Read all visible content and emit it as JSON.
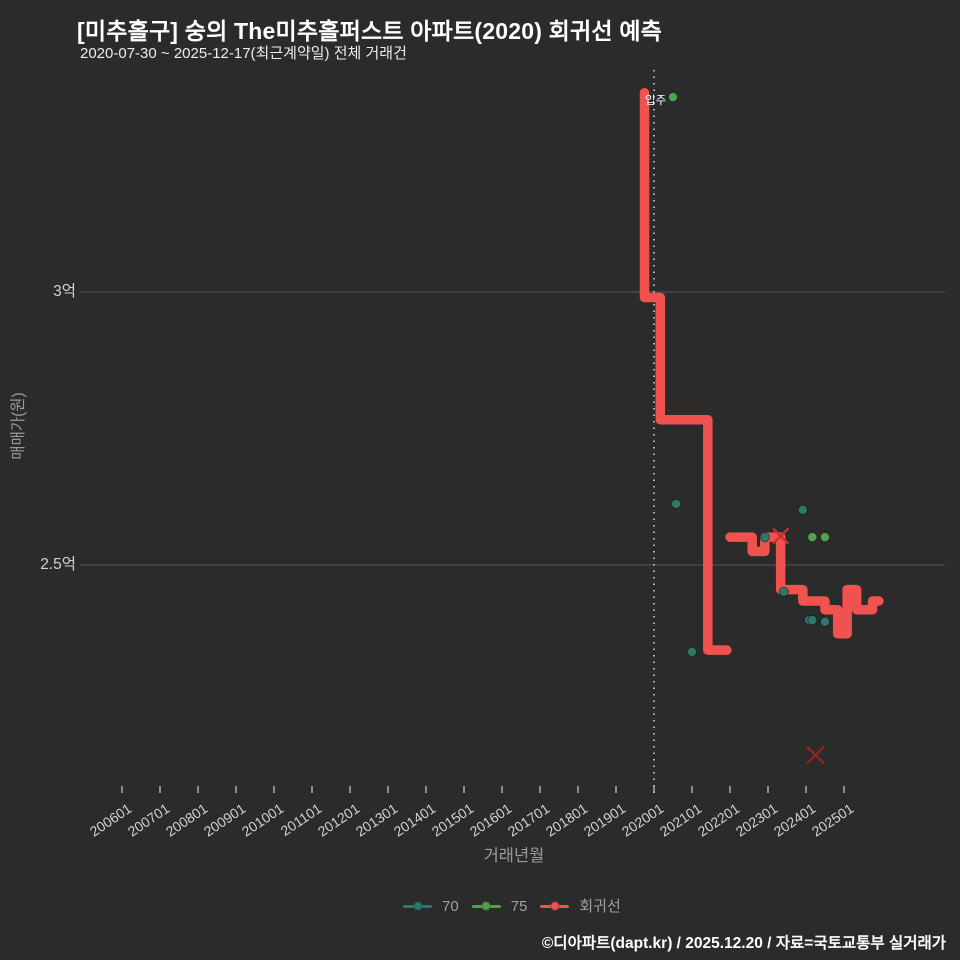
{
  "header": {
    "title": "[미추홀구] 숭의 The미추홀퍼스트 아파트(2020) 회귀선 예측",
    "subtitle": "2020-07-30 ~ 2025-12-17(최근계약일) 전체 거래건"
  },
  "chart_data": {
    "type": "step-line+scatter",
    "title": "[미추홀구] 숭의 The미추홀퍼스트 아파트(2020) 회귀선 예측",
    "xlabel": "거래년월",
    "ylabel": "매매가(원)",
    "x_tick_labels": [
      "200601",
      "200701",
      "200801",
      "200901",
      "201001",
      "201101",
      "201201",
      "201301",
      "201401",
      "201501",
      "201601",
      "201701",
      "201801",
      "201901",
      "202001",
      "202101",
      "202201",
      "202301",
      "202401",
      "202501"
    ],
    "y_ticks": [
      {
        "label": "3억",
        "value": 3.0
      },
      {
        "label": "2.5억",
        "value": 2.5
      }
    ],
    "y_unit": "억원",
    "grid": "horizontal-only",
    "legend_position": "bottom-center",
    "series": [
      {
        "name": "70",
        "type": "scatter",
        "color": "#2d7a6a",
        "points": [
          [
            202008,
            2.612
          ],
          [
            202101,
            2.341
          ],
          [
            202212,
            2.551
          ],
          [
            202306,
            2.451
          ],
          [
            202312,
            2.601
          ],
          [
            202402,
            2.399
          ],
          [
            202403,
            2.399
          ],
          [
            202407,
            2.396
          ]
        ]
      },
      {
        "name": "75",
        "type": "scatter",
        "color": "#55a04f",
        "points": [
          [
            202007,
            3.357
          ],
          [
            202403,
            2.551
          ],
          [
            202407,
            2.551
          ]
        ]
      },
      {
        "name": "회귀선",
        "type": "step-line",
        "color": "#f0534f",
        "segments": [
          [
            [
              201910,
              3.365
            ],
            [
              201910,
              2.99
            ],
            [
              202003,
              2.99
            ],
            [
              202003,
              2.766
            ],
            [
              202106,
              2.766
            ],
            [
              202106,
              2.344
            ],
            [
              202112,
              2.344
            ]
          ],
          [
            [
              202201,
              2.551
            ],
            [
              202208,
              2.551
            ],
            [
              202208,
              2.525
            ],
            [
              202212,
              2.525
            ],
            [
              202212,
              2.551
            ],
            [
              202305,
              2.551
            ],
            [
              202305,
              2.455
            ],
            [
              202312,
              2.455
            ],
            [
              202312,
              2.434
            ],
            [
              202407,
              2.434
            ],
            [
              202407,
              2.418
            ],
            [
              202411,
              2.418
            ],
            [
              202411,
              2.374
            ],
            [
              202502,
              2.374
            ],
            [
              202502,
              2.455
            ],
            [
              202505,
              2.455
            ],
            [
              202505,
              2.418
            ],
            [
              202510,
              2.418
            ],
            [
              202510,
              2.434
            ],
            [
              202512,
              2.434
            ]
          ]
        ]
      }
    ],
    "outliers": [
      {
        "x": 202305,
        "y": 2.553,
        "color": "#c9302c",
        "size": 7
      },
      {
        "x": 202404,
        "y": 2.152,
        "color": "#942222",
        "size": 8
      }
    ],
    "annotation": {
      "label": "입주",
      "x": 202001
    },
    "legend": [
      {
        "label": "70",
        "color": "#2d7a6a"
      },
      {
        "label": "75",
        "color": "#55a04f"
      },
      {
        "label": "회귀선",
        "color": "#f0534f"
      }
    ]
  },
  "footer": {
    "credit": "©디아파트(dapt.kr) / 2025.12.20 / 자료=국토교통부 실거래가"
  },
  "colors": {
    "background": "#2b2b2b",
    "grid": "#555555",
    "tick_mark": "#cccccc",
    "tick_text": "#d2d2d2",
    "axis_label_text": "#9a9a9a",
    "title_text": "#ffffff",
    "annotation_line": "#e8e8e8"
  }
}
